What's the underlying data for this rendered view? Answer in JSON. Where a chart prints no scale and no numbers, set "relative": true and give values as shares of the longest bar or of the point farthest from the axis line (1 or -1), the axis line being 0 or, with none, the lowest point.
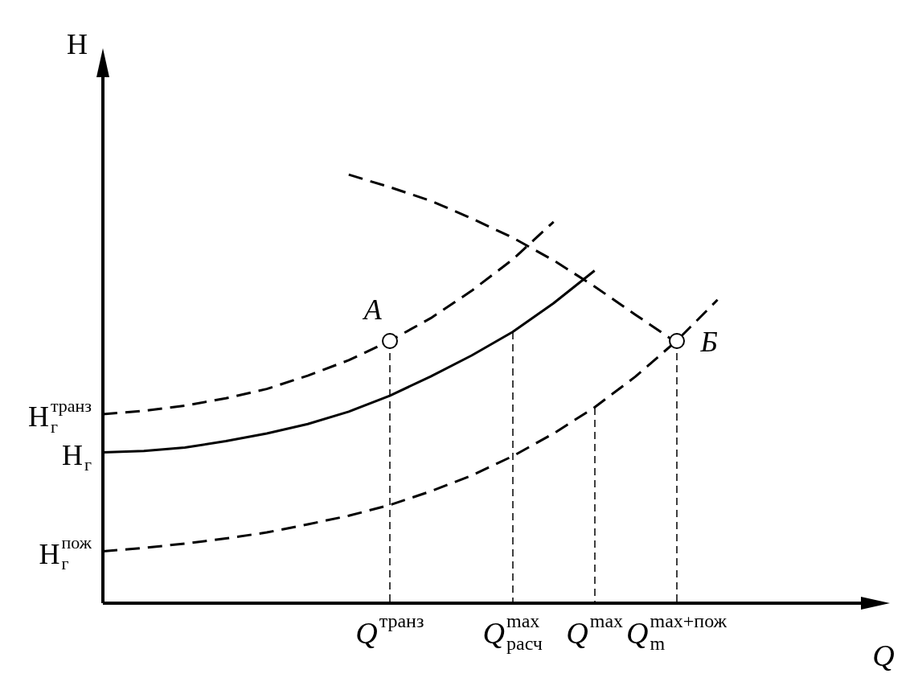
{
  "chart_data": {
    "type": "line",
    "relative": true,
    "xlabel": "Q",
    "ylabel": "H",
    "legend": false,
    "marker": "none",
    "categories": [
      null,
      null,
      null,
      null,
      null,
      null,
      null,
      "Q$^{транз}$",
      null,
      null,
      "Q$^{max}$$_{расч}$",
      null,
      "Q$^{max}$",
      null,
      "Q$^{max+пож}$$_{m}$",
      null
    ],
    "series": [
      {
        "color": "#000000",
        "line_style": "dashed",
        "values": [
          0.441,
          0.449,
          0.461,
          0.478,
          0.5,
          0.531,
          0.567,
          0.612,
          0.665,
          0.729,
          0.802,
          0.89,
          null,
          null,
          null,
          null
        ]
      },
      {
        "color": "#000000",
        "line_style": "solid",
        "values": [
          0.352,
          0.355,
          0.363,
          0.378,
          0.396,
          0.418,
          0.447,
          0.484,
          0.529,
          0.578,
          0.633,
          0.7,
          0.776,
          null,
          null,
          null
        ]
      },
      {
        "color": "#000000",
        "line_style": "dashed",
        "values": [
          0.121,
          0.129,
          0.139,
          0.151,
          0.165,
          0.184,
          0.204,
          0.229,
          0.261,
          0.298,
          0.343,
          0.396,
          0.457,
          0.529,
          0.612,
          0.708
        ]
      },
      {
        "color": "#000000",
        "line_style": "dashed",
        "values": [
          null,
          null,
          null,
          null,
          null,
          null,
          1,
          0.971,
          0.939,
          0.898,
          0.853,
          0.8,
          0.739,
          0.673,
          0.608,
          null
        ]
      }
    ],
    "annotations": [
      {
        "text": "A",
        "x": "Q$^{транз}$",
        "y": 0.612
      },
      {
        "text": "Б",
        "x": "Q$^{max+пож}$$_{m}$",
        "y": 0.612
      },
      "H$^{транз}$$_{г}$",
      "H$_{г}$",
      "H$^{пож}$$_{г}$"
    ]
  }
}
